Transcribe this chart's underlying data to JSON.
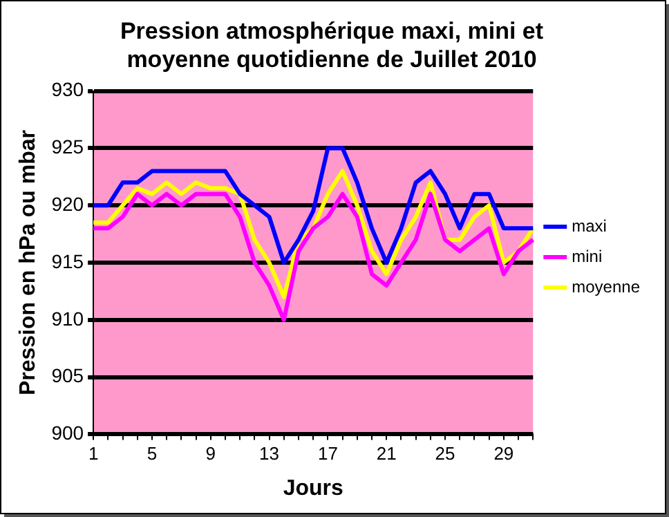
{
  "chart_data": {
    "type": "line",
    "title": "Pression atmosphérique maxi, mini et moyenne quotidienne de Juillet 2010",
    "xlabel": "Jours",
    "ylabel": "Pression en hPa ou mbar",
    "categories": [
      "1",
      null,
      null,
      null,
      "5",
      null,
      null,
      null,
      "9",
      null,
      null,
      null,
      "13",
      null,
      null,
      null,
      "17",
      null,
      null,
      null,
      "21",
      null,
      null,
      null,
      "25",
      null,
      null,
      null,
      "29",
      null,
      null
    ],
    "series": [
      {
        "name": "maxi",
        "color": "#0000ff",
        "values": [
          920,
          920,
          922,
          922,
          923,
          923,
          923,
          923,
          923,
          923,
          921,
          920,
          919,
          915,
          917,
          919.5,
          925,
          925,
          922,
          918,
          915,
          918,
          922,
          923,
          921,
          918,
          921,
          921,
          918,
          918,
          918
        ]
      },
      {
        "name": "mini",
        "color": "#ff00ff",
        "values": [
          918,
          918,
          919,
          921,
          920,
          921,
          920,
          921,
          921,
          921,
          919,
          915,
          913,
          910,
          916,
          918,
          919,
          921,
          919,
          914,
          913,
          915,
          917,
          921,
          917,
          916,
          917,
          918,
          914,
          916,
          917
        ]
      },
      {
        "name": "moyenne",
        "color": "#ffff00",
        "values": [
          918.5,
          918.5,
          920,
          921.5,
          921,
          922,
          921,
          922,
          921.5,
          921.5,
          921,
          917,
          915,
          912,
          917,
          918,
          921,
          923,
          920,
          916,
          914,
          917,
          919,
          922,
          917,
          917,
          919,
          920,
          915,
          916,
          918
        ]
      }
    ],
    "ylim": [
      900,
      930
    ],
    "yticks": [
      900,
      905,
      910,
      915,
      920,
      925,
      930
    ],
    "grid": "y",
    "legend": "right",
    "marker": "none",
    "line_style": "solid"
  }
}
